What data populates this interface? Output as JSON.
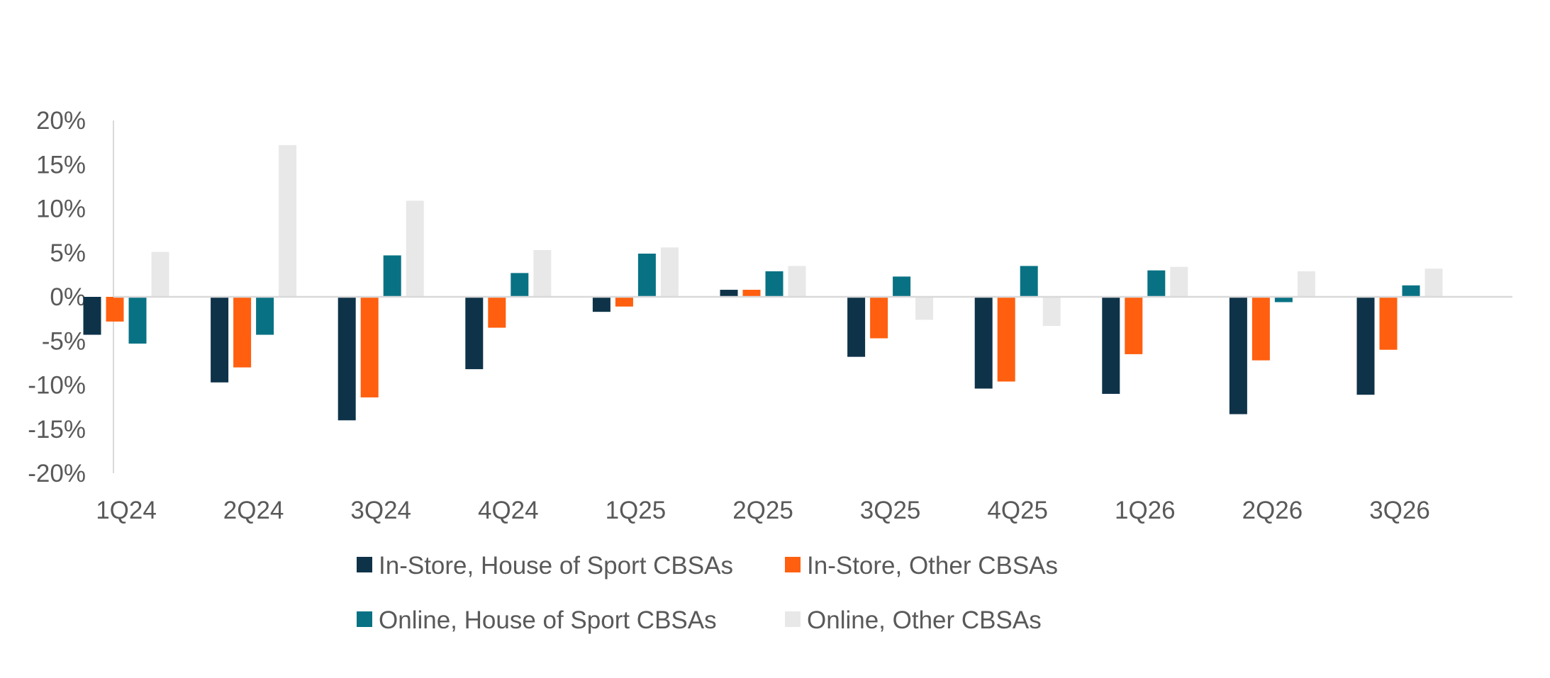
{
  "chart_data": {
    "type": "bar",
    "title": "",
    "xlabel": "",
    "ylabel": "",
    "ylim": [
      -20,
      20
    ],
    "y_ticks": [
      20,
      15,
      10,
      5,
      0,
      -5,
      -10,
      -15,
      -20
    ],
    "y_tick_labels": [
      "20%",
      "15%",
      "10%",
      "5%",
      "0%",
      "-5%",
      "-10%",
      "-15%",
      "-20%"
    ],
    "categories": [
      "1Q24",
      "2Q24",
      "3Q24",
      "4Q24",
      "1Q25",
      "2Q25",
      "3Q25",
      "4Q25",
      "1Q26",
      "2Q26",
      "3Q26"
    ],
    "grid": false,
    "legend_position": "bottom",
    "series": [
      {
        "name": "In-Store, House of Sport CBSAs",
        "color": "#0E3349",
        "values": [
          -4.3,
          -9.7,
          -14.0,
          -8.2,
          -1.7,
          0.8,
          -6.8,
          -10.4,
          -11.0,
          -13.3,
          -11.1
        ]
      },
      {
        "name": "In-Store, Other CBSAs",
        "color": "#FF5F0F",
        "values": [
          -2.8,
          -8.0,
          -11.4,
          -3.5,
          -1.1,
          0.8,
          -4.7,
          -9.6,
          -6.5,
          -7.2,
          -6.0
        ]
      },
      {
        "name": "Online, House of Sport CBSAs",
        "color": "#087284",
        "values": [
          -5.3,
          -4.3,
          4.7,
          2.7,
          4.9,
          2.9,
          2.3,
          3.5,
          3.0,
          -0.6,
          1.3
        ]
      },
      {
        "name": "Online, Other CBSAs",
        "color": "#E8E8E8",
        "values": [
          5.1,
          17.2,
          10.9,
          5.3,
          5.6,
          3.5,
          -2.6,
          -3.3,
          3.4,
          2.9,
          3.2
        ]
      }
    ]
  }
}
